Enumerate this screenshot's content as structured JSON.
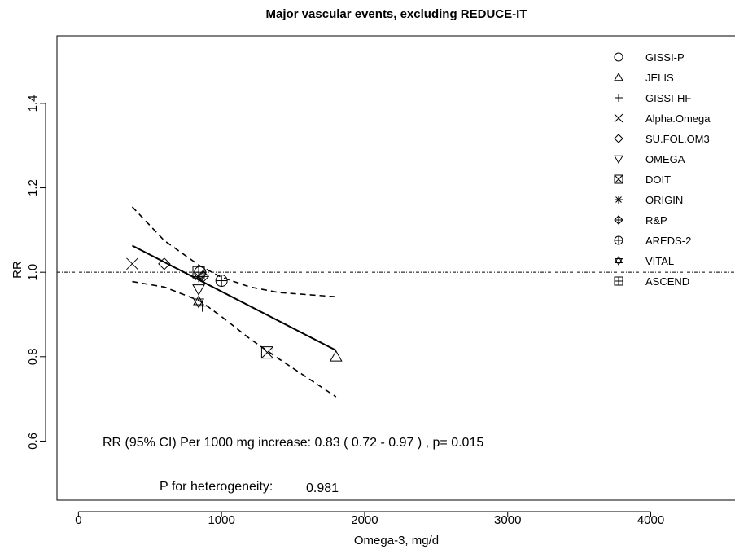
{
  "chart_data": {
    "type": "scatter",
    "title": "Major vascular events, excluding REDUCE-IT",
    "xlabel": "Omega-3, mg/d",
    "ylabel": "RR",
    "xlim": [
      -150,
      4600
    ],
    "ylim": [
      0.46,
      1.56
    ],
    "x_ticks": [
      0,
      1000,
      2000,
      3000,
      4000
    ],
    "y_ticks": [
      0.6,
      0.8,
      1.0,
      1.2,
      1.4
    ],
    "x_tick_labels": [
      "0",
      "1000",
      "2000",
      "3000",
      "4000"
    ],
    "y_tick_labels": [
      "0.6",
      "0.8",
      "1.0",
      "1.2",
      "1.4"
    ],
    "grid": false,
    "legend_position": "top-right",
    "reference_line": {
      "y": 1.0,
      "style": "dot-dash"
    },
    "series": [
      {
        "name": "GISSI-P",
        "marker": "circle",
        "x": [
          850
        ],
        "y": [
          1.0
        ]
      },
      {
        "name": "JELIS",
        "marker": "triangle-up",
        "x": [
          1800
        ],
        "y": [
          0.8
        ]
      },
      {
        "name": "GISSI-HF",
        "marker": "plus",
        "x": [
          866
        ],
        "y": [
          0.92
        ]
      },
      {
        "name": "Alpha.Omega",
        "marker": "x",
        "x": [
          376
        ],
        "y": [
          1.02
        ]
      },
      {
        "name": "SU.FOL.OM3",
        "marker": "diamond",
        "x": [
          600
        ],
        "y": [
          1.02
        ]
      },
      {
        "name": "OMEGA",
        "marker": "triangle-down",
        "x": [
          840
        ],
        "y": [
          0.96
        ]
      },
      {
        "name": "DOIT",
        "marker": "square-x",
        "x": [
          1320
        ],
        "y": [
          0.81
        ]
      },
      {
        "name": "ORIGIN",
        "marker": "asterisk",
        "x": [
          840
        ],
        "y": [
          0.99
        ]
      },
      {
        "name": "R&P",
        "marker": "diamond-plus",
        "x": [
          870
        ],
        "y": [
          0.99
        ]
      },
      {
        "name": "AREDS-2",
        "marker": "circle-plus",
        "x": [
          1000
        ],
        "y": [
          0.98
        ]
      },
      {
        "name": "VITAL",
        "marker": "star-of-david",
        "x": [
          840
        ],
        "y": [
          0.93
        ]
      },
      {
        "name": "ASCEND",
        "marker": "square-plus",
        "x": [
          840
        ],
        "y": [
          1.0
        ]
      }
    ],
    "fit": {
      "line": {
        "x": [
          376,
          1800
        ],
        "y": [
          1.063,
          0.815
        ]
      },
      "ci_upper": {
        "x": [
          376,
          600,
          850,
          1000,
          1200,
          1400,
          1800
        ],
        "y": [
          1.155,
          1.075,
          1.015,
          0.988,
          0.965,
          0.952,
          0.942
        ]
      },
      "ci_lower": {
        "x": [
          376,
          600,
          850,
          1000,
          1200,
          1400,
          1800
        ],
        "y": [
          0.978,
          0.965,
          0.932,
          0.895,
          0.842,
          0.795,
          0.705
        ]
      }
    },
    "annotations": {
      "rr_text": "RR (95% CI) Per 1000 mg increase: 0.83 ( 0.72 - 0.97 ) , p= 0.015",
      "het_label": "P for heterogeneity:",
      "het_value": "0.981"
    }
  }
}
